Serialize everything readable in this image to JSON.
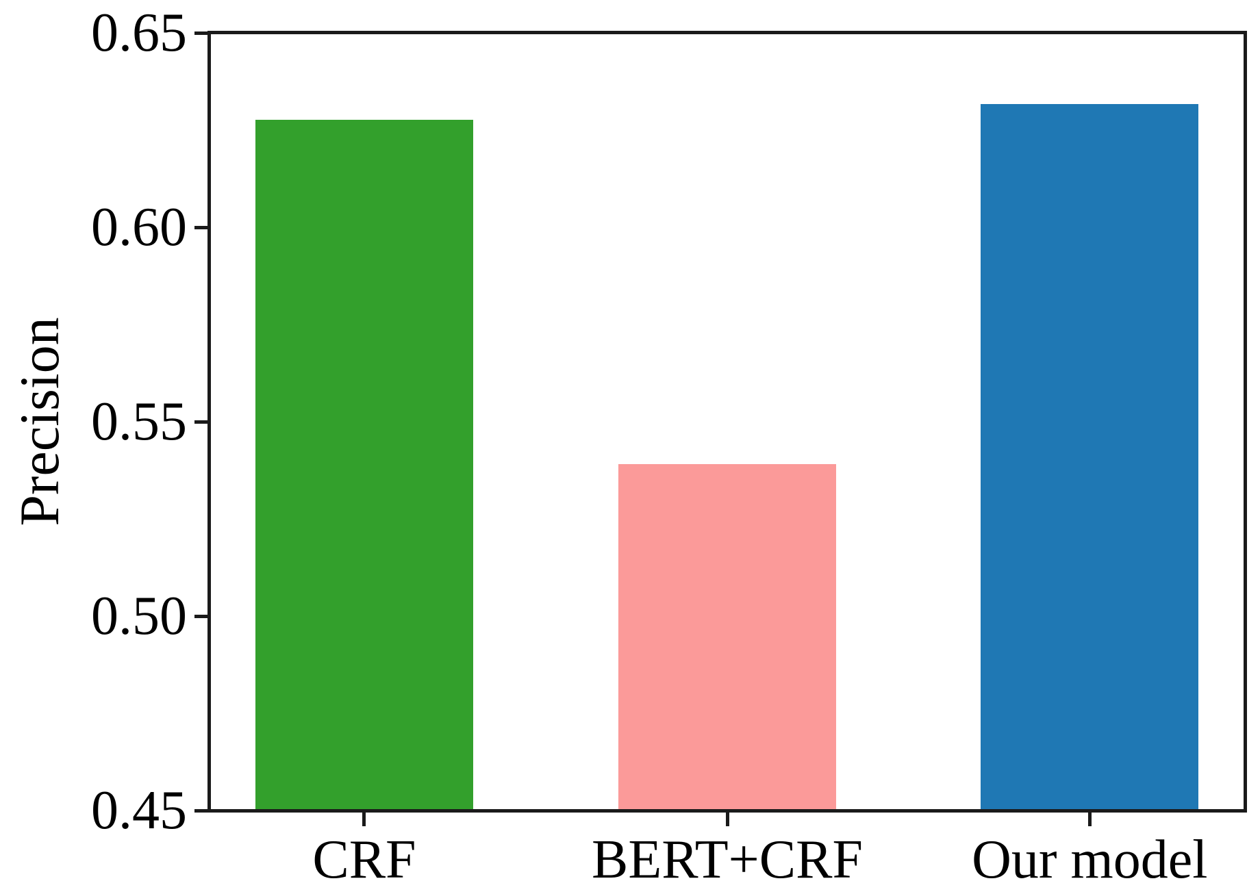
{
  "figure": {
    "background_color": "#ffffff",
    "spine_color": "#1a1a1a",
    "text_color": "#000000"
  },
  "chart_data": {
    "type": "bar",
    "title": "",
    "categories": [
      "CRF",
      "BERT+CRF",
      "Our model"
    ],
    "values": [
      0.628,
      0.539,
      0.632
    ],
    "bar_colors": [
      "#33a02c",
      "#fb9a99",
      "#1f78b4"
    ],
    "xlabel": "",
    "ylabel": "Precision",
    "ylim": [
      0.45,
      0.65
    ],
    "yticks": [
      0.45,
      0.5,
      0.55,
      0.6,
      0.65
    ],
    "ytick_labels": [
      "0.45",
      "0.50",
      "0.55",
      "0.60",
      "0.65"
    ],
    "grid": false,
    "legend_position": "none"
  }
}
